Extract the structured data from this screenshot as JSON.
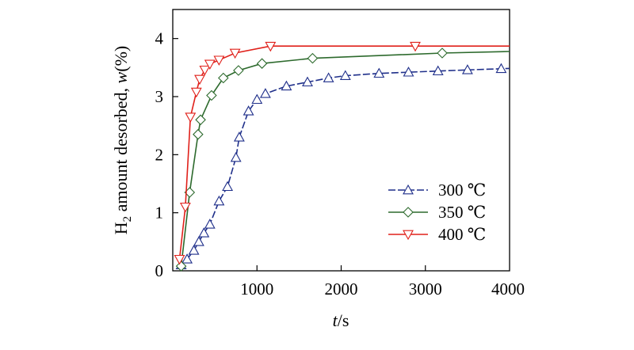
{
  "chart_data": {
    "type": "line",
    "xlabel_italic": "t",
    "xlabel_rest": "/s",
    "ylabel_pre": "H",
    "ylabel_sub": "2",
    "ylabel_mid": " amount desorbed, ",
    "ylabel_italic": "w",
    "ylabel_post": "(%)",
    "xlim": [
      0,
      4000
    ],
    "ylim": [
      0,
      4.5
    ],
    "x_ticks": [
      1000,
      2000,
      3000,
      4000
    ],
    "x_tick_labels": [
      "1000",
      "2000",
      "3000",
      "4000"
    ],
    "y_ticks": [
      0,
      1,
      2,
      3,
      4
    ],
    "y_tick_labels": [
      "0",
      "1",
      "2",
      "3",
      "4"
    ],
    "grid": false,
    "legend_position": "bottom-right",
    "series": [
      {
        "name": "300 ℃",
        "color": "#1f2f8a",
        "marker": "triangle-up",
        "line_style": "dashed",
        "x": [
          100,
          170,
          250,
          310,
          370,
          440,
          550,
          650,
          750,
          790,
          900,
          1000,
          1100,
          1350,
          1600,
          1850,
          2050,
          2450,
          2800,
          3150,
          3500,
          3900
        ],
        "y": [
          0.1,
          0.2,
          0.35,
          0.5,
          0.65,
          0.8,
          1.2,
          1.45,
          1.95,
          2.3,
          2.75,
          2.95,
          3.05,
          3.18,
          3.25,
          3.32,
          3.36,
          3.4,
          3.42,
          3.44,
          3.46,
          3.48
        ]
      },
      {
        "name": "350 ℃",
        "color": "#2d6a2d",
        "marker": "diamond",
        "line_style": "solid",
        "x": [
          100,
          200,
          300,
          330,
          460,
          600,
          780,
          1060,
          1660,
          3200
        ],
        "y": [
          0.08,
          1.35,
          2.35,
          2.6,
          3.02,
          3.32,
          3.45,
          3.57,
          3.66,
          3.75
        ]
      },
      {
        "name": "400 ℃",
        "color": "#e0201a",
        "marker": "triangle-down",
        "line_style": "solid",
        "x": [
          80,
          150,
          210,
          280,
          320,
          380,
          440,
          550,
          740,
          1160,
          2880
        ],
        "y": [
          0.2,
          1.1,
          2.65,
          3.08,
          3.3,
          3.46,
          3.56,
          3.63,
          3.75,
          3.87,
          3.87
        ]
      }
    ]
  }
}
